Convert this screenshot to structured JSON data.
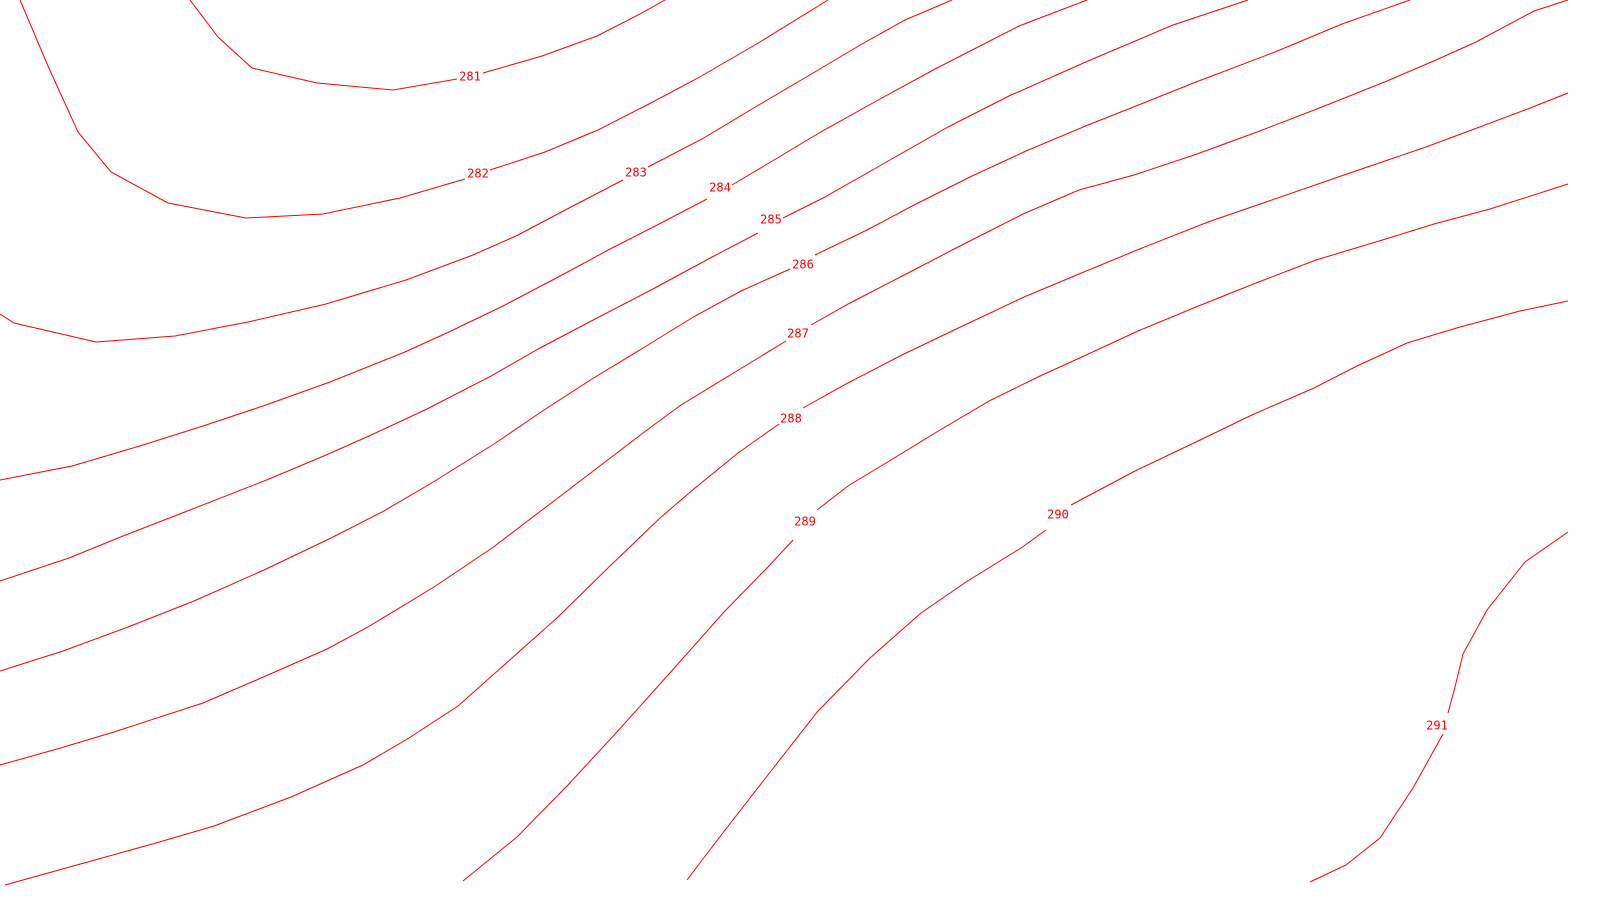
{
  "map": {
    "background_color": "#ffffff",
    "line_color": "#ff0000",
    "contours": [
      {
        "id": "281",
        "label": "281"
      },
      {
        "id": "282",
        "label": "282"
      },
      {
        "id": "283",
        "label": "283"
      },
      {
        "id": "284",
        "label": "284"
      },
      {
        "id": "285",
        "label": "285"
      },
      {
        "id": "286",
        "label": "286"
      },
      {
        "id": "287",
        "label": "287"
      },
      {
        "id": "288",
        "label": "288"
      },
      {
        "id": "289",
        "label": "289"
      },
      {
        "id": "290",
        "label": "290"
      },
      {
        "id": "291",
        "label": "291"
      }
    ]
  }
}
